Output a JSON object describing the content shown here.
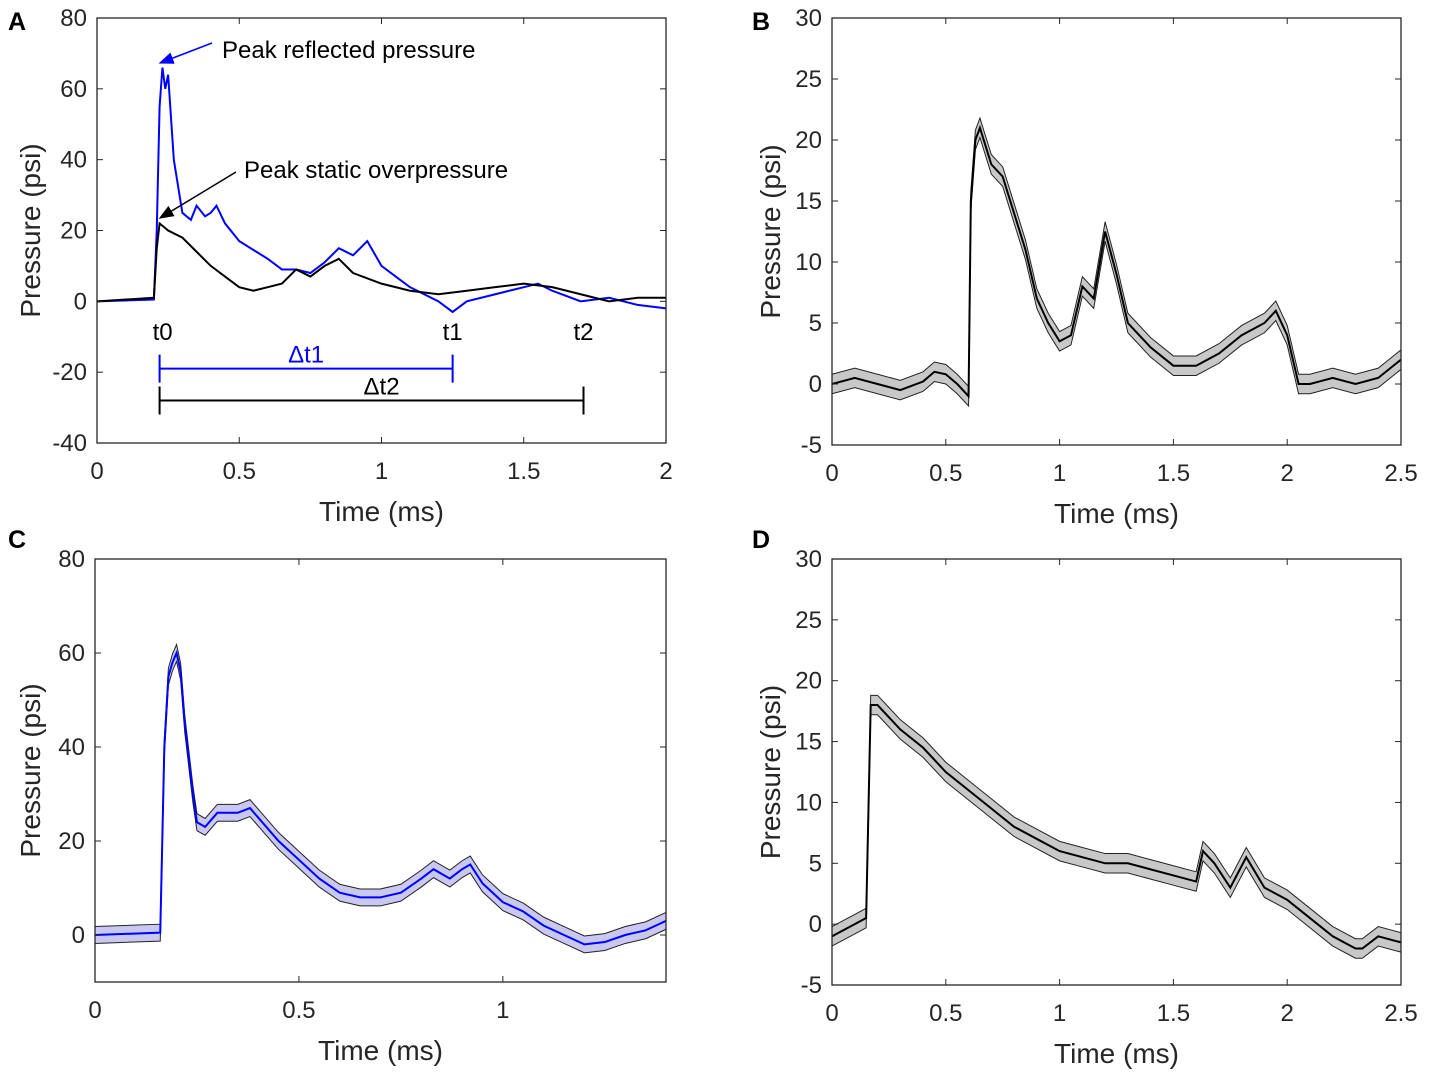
{
  "chart_data": [
    {
      "panel": "A",
      "type": "line",
      "xlabel": "Time (ms)",
      "ylabel": "Pressure (psi)",
      "xlim": [
        0,
        2
      ],
      "ylim": [
        -40,
        80
      ],
      "xticks": [
        0,
        0.5,
        1,
        1.5,
        2
      ],
      "xtick_labels": [
        "0",
        "0.5",
        "1",
        "1.5",
        "2"
      ],
      "yticks": [
        -40,
        -20,
        0,
        20,
        40,
        60,
        80
      ],
      "ytick_labels": [
        "-40",
        "-20",
        "0",
        "20",
        "40",
        "60",
        "80"
      ],
      "grid": false,
      "series": [
        {
          "color": "#0000ff",
          "x": [
            0,
            0.2,
            0.21,
            0.22,
            0.23,
            0.24,
            0.25,
            0.27,
            0.3,
            0.33,
            0.35,
            0.38,
            0.4,
            0.42,
            0.45,
            0.5,
            0.6,
            0.65,
            0.7,
            0.75,
            0.8,
            0.85,
            0.9,
            0.95,
            1.0,
            1.05,
            1.1,
            1.2,
            1.25,
            1.3,
            1.4,
            1.5,
            1.55,
            1.6,
            1.7,
            1.8,
            1.9,
            2.0
          ],
          "y": [
            0,
            0.5,
            20,
            55,
            66,
            60,
            64,
            40,
            25,
            23,
            27,
            24,
            25,
            27,
            22,
            17,
            12,
            9,
            9,
            8,
            11,
            15,
            13,
            17,
            10,
            7,
            4,
            0,
            -3,
            0,
            2,
            4,
            5,
            3,
            0,
            1,
            -1,
            -2
          ]
        },
        {
          "color": "#000000",
          "x": [
            0,
            0.2,
            0.21,
            0.22,
            0.25,
            0.3,
            0.35,
            0.4,
            0.45,
            0.5,
            0.55,
            0.6,
            0.65,
            0.7,
            0.75,
            0.8,
            0.85,
            0.9,
            1.0,
            1.1,
            1.2,
            1.3,
            1.4,
            1.5,
            1.6,
            1.7,
            1.8,
            1.9,
            2.0
          ],
          "y": [
            0,
            1,
            15,
            22,
            20,
            18,
            14,
            10,
            7,
            4,
            3,
            4,
            5,
            9,
            7,
            10,
            12,
            8,
            5,
            3,
            2,
            3,
            4,
            5,
            4,
            2,
            0,
            1,
            1
          ]
        }
      ],
      "annotations": {
        "peak_reflected": "Peak reflected pressure",
        "peak_static": "Peak static overpressure",
        "t0": "t0",
        "t1": "t1",
        "t2": "t2",
        "dt1": "Δt1",
        "dt2": "Δt2",
        "t0_x": 0.22,
        "t1_x": 1.25,
        "t2_x": 1.71,
        "dt1_color": "#0000ff"
      }
    },
    {
      "panel": "B",
      "type": "area",
      "xlabel": "Time (ms)",
      "ylabel": "Pressure (psi)",
      "xlim": [
        0,
        2.5
      ],
      "ylim": [
        -5,
        30
      ],
      "xticks": [
        0,
        0.5,
        1,
        1.5,
        2,
        2.5
      ],
      "xtick_labels": [
        "0",
        "0.5",
        "1",
        "1.5",
        "2",
        "2.5"
      ],
      "yticks": [
        -5,
        0,
        5,
        10,
        15,
        20,
        25,
        30
      ],
      "ytick_labels": [
        "-5",
        "0",
        "5",
        "10",
        "15",
        "20",
        "25",
        "30"
      ],
      "grid": false,
      "series": [
        {
          "color": "#000000",
          "band_color": "#c8c8c8",
          "band_halfwidth": 0.8,
          "x": [
            0,
            0.1,
            0.2,
            0.3,
            0.4,
            0.45,
            0.5,
            0.55,
            0.6,
            0.61,
            0.63,
            0.65,
            0.7,
            0.75,
            0.8,
            0.85,
            0.9,
            0.95,
            1.0,
            1.05,
            1.1,
            1.15,
            1.2,
            1.25,
            1.3,
            1.4,
            1.5,
            1.6,
            1.7,
            1.8,
            1.9,
            1.95,
            2.0,
            2.05,
            2.1,
            2.2,
            2.3,
            2.4,
            2.5
          ],
          "y": [
            0,
            0.5,
            0,
            -0.5,
            0.2,
            1,
            0.8,
            0,
            -1,
            15,
            20,
            21,
            18,
            17,
            14,
            11,
            7,
            5,
            3.5,
            4,
            8,
            7,
            12.5,
            9,
            5,
            3,
            1.5,
            1.5,
            2.5,
            4,
            5,
            6,
            4,
            0,
            0,
            0.5,
            0,
            0.5,
            2
          ]
        }
      ]
    },
    {
      "panel": "C",
      "type": "area",
      "xlabel": "Time (ms)",
      "ylabel": "Pressure (psi)",
      "xlim": [
        0,
        1.4
      ],
      "ylim": [
        -10,
        80
      ],
      "xticks": [
        0,
        0.5,
        1
      ],
      "xtick_labels": [
        "0",
        "0.5",
        "1"
      ],
      "yticks": [
        0,
        20,
        40,
        60,
        80
      ],
      "ytick_labels": [
        "0",
        "20",
        "40",
        "60",
        "80"
      ],
      "grid": false,
      "series": [
        {
          "color": "#0000ff",
          "band_color": "#c8c8f0",
          "band_halfwidth": 1.8,
          "x": [
            0,
            0.16,
            0.17,
            0.18,
            0.19,
            0.2,
            0.21,
            0.22,
            0.24,
            0.25,
            0.27,
            0.3,
            0.35,
            0.38,
            0.4,
            0.45,
            0.5,
            0.55,
            0.6,
            0.65,
            0.7,
            0.75,
            0.8,
            0.83,
            0.87,
            0.9,
            0.92,
            0.95,
            1.0,
            1.05,
            1.1,
            1.15,
            1.2,
            1.25,
            1.3,
            1.35,
            1.4
          ],
          "y": [
            0,
            0.5,
            40,
            55,
            58,
            60,
            56,
            45,
            30,
            24,
            23,
            26,
            26,
            27,
            25,
            20,
            16,
            12,
            9,
            8,
            8,
            9,
            12,
            14,
            12,
            14,
            15,
            11,
            7,
            5,
            2,
            0,
            -2,
            -1.5,
            0,
            1,
            3
          ]
        }
      ]
    },
    {
      "panel": "D",
      "type": "area",
      "xlabel": "Time (ms)",
      "ylabel": "Pressure (psi)",
      "xlim": [
        0,
        2.5
      ],
      "ylim": [
        -5,
        30
      ],
      "xticks": [
        0,
        0.5,
        1,
        1.5,
        2,
        2.5
      ],
      "xtick_labels": [
        "0",
        "0.5",
        "1",
        "1.5",
        "2",
        "2.5"
      ],
      "yticks": [
        -5,
        0,
        5,
        10,
        15,
        20,
        25,
        30
      ],
      "ytick_labels": [
        "-5",
        "0",
        "5",
        "10",
        "15",
        "20",
        "25",
        "30"
      ],
      "grid": false,
      "series": [
        {
          "color": "#000000",
          "band_color": "#c8c8c8",
          "band_halfwidth": 0.8,
          "x": [
            0,
            0.1,
            0.15,
            0.17,
            0.2,
            0.3,
            0.4,
            0.5,
            0.6,
            0.7,
            0.8,
            0.9,
            1.0,
            1.1,
            1.2,
            1.3,
            1.4,
            1.5,
            1.6,
            1.63,
            1.68,
            1.75,
            1.82,
            1.9,
            2.0,
            2.1,
            2.2,
            2.3,
            2.33,
            2.4,
            2.5
          ],
          "y": [
            -1,
            0,
            0.5,
            18,
            18,
            16,
            14.5,
            12.5,
            11,
            9.5,
            8,
            7,
            6,
            5.5,
            5,
            5,
            4.5,
            4,
            3.5,
            6,
            5,
            3,
            5.5,
            3,
            2,
            0.5,
            -1,
            -2,
            -2,
            -1,
            -1.5
          ]
        }
      ]
    }
  ]
}
